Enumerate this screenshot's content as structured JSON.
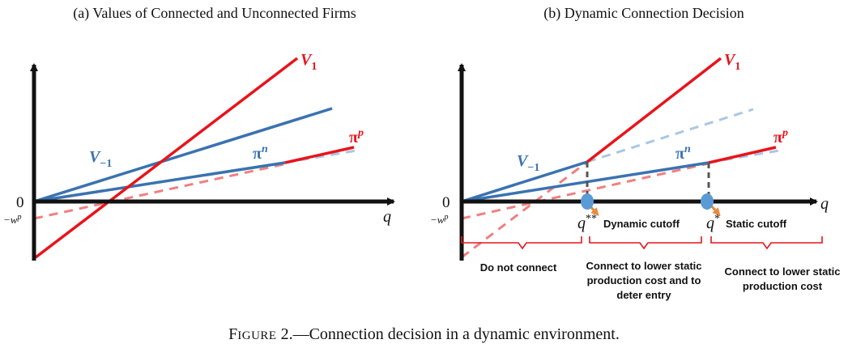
{
  "panel_a": {
    "title": "(a) Values of Connected and Unconnected Firms",
    "origin_label": "0",
    "wp_label_prefix": "−w",
    "wp_label_sup": "p",
    "axis_label": "q",
    "label_v1": "V",
    "label_v1_sub": "1",
    "label_vm1": "V",
    "label_vm1_sub": "−1",
    "label_pin": "π",
    "label_pin_sup": "n",
    "label_pip": "π",
    "label_pip_sup": "p"
  },
  "panel_b": {
    "title": "(b) Dynamic Connection Decision",
    "origin_label": "0",
    "wp_label_prefix": "−w",
    "wp_label_sup": "p",
    "axis_label": "q",
    "label_v1": "V",
    "label_v1_sub": "1",
    "label_vm1": "V",
    "label_vm1_sub": "−1",
    "label_pin": "π",
    "label_pin_sup": "n",
    "label_pip": "π",
    "label_pip_sup": "p",
    "qss_label": "q",
    "qss_sup": "**",
    "dynamic_cutoff": "Dynamic cutoff",
    "qs_label": "q",
    "qs_sup": "*",
    "static_cutoff": "Static cutoff",
    "region1": "Do not connect",
    "region2_lines": [
      "Connect to lower static",
      "production cost  and to",
      "deter entry"
    ],
    "region3_lines": [
      "Connect to lower static",
      "production cost"
    ]
  },
  "caption": {
    "prefix": "F",
    "smallcaps": "IGURE",
    "rest": " 2.—Connection decision in a dynamic environment."
  },
  "colors": {
    "red": "#e8141b",
    "red_dashed": "#f08080",
    "blue": "#3a72b0",
    "blue_dashed": "#a9c7e3",
    "axis": "#111111",
    "cutoff_dot": "#5b9bd5",
    "arrow": "#e98a3a",
    "bracket": "#e8141b",
    "gray_dash": "#555555"
  }
}
